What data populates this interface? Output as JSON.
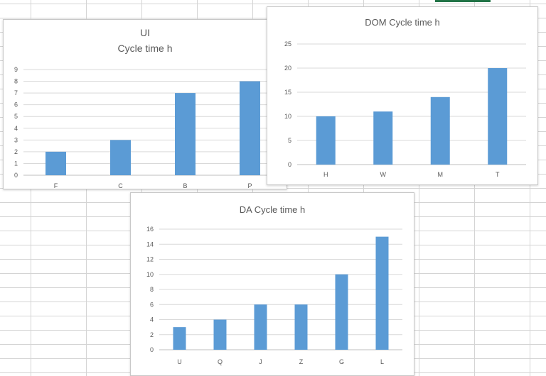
{
  "colors": {
    "bar": "#5B9BD5",
    "grid": "#d9d9d9",
    "axis": "#bfbfbf",
    "text": "#595959",
    "accent": "#217346"
  },
  "chart_data": [
    {
      "type": "bar",
      "title": [
        "UI",
        "Cycle time h"
      ],
      "categories": [
        "F",
        "C",
        "B",
        "P"
      ],
      "values": [
        2,
        3,
        7,
        8
      ],
      "ylim": [
        0,
        9
      ],
      "yticks": [
        0,
        1,
        2,
        3,
        4,
        5,
        6,
        7,
        8,
        9
      ],
      "grid": true,
      "legend": "none",
      "xlabel": "",
      "ylabel": ""
    },
    {
      "type": "bar",
      "title": [
        "DOM Cycle time h"
      ],
      "categories": [
        "H",
        "W",
        "M",
        "T"
      ],
      "values": [
        10,
        11,
        14,
        20
      ],
      "ylim": [
        0,
        25
      ],
      "yticks": [
        0,
        5,
        10,
        15,
        20,
        25
      ],
      "grid": true,
      "legend": "none",
      "xlabel": "",
      "ylabel": ""
    },
    {
      "type": "bar",
      "title": [
        "DA Cycle time h"
      ],
      "categories": [
        "U",
        "Q",
        "J",
        "Z",
        "G",
        "L"
      ],
      "values": [
        3,
        4,
        6,
        6,
        10,
        15
      ],
      "ylim": [
        0,
        16
      ],
      "yticks": [
        0,
        2,
        4,
        6,
        8,
        10,
        12,
        14,
        16
      ],
      "grid": true,
      "legend": "none",
      "xlabel": "",
      "ylabel": ""
    }
  ]
}
